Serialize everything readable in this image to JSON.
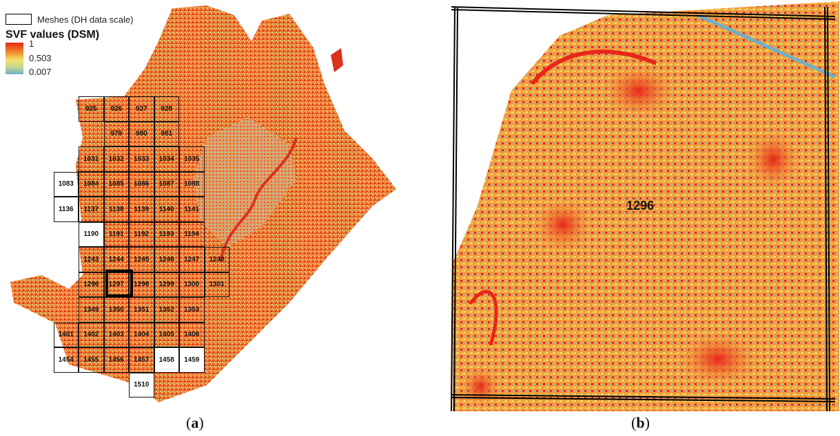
{
  "legend": {
    "mesh_label": "Meshes (DH data scale)",
    "title": "SVF values (DSM)",
    "ramp_max": "1",
    "ramp_mid": "0.503",
    "ramp_min": "0.007"
  },
  "colors": {
    "high": "#e8261a",
    "mid": "#f5e06a",
    "low": "#6fb0c8"
  },
  "panel_a": {
    "caption_open": "(",
    "caption_letter": "a",
    "caption_close": ")",
    "meshes": [
      {
        "id": "925"
      },
      {
        "id": "926"
      },
      {
        "id": "927"
      },
      {
        "id": "928"
      },
      {
        "id": "979"
      },
      {
        "id": "980"
      },
      {
        "id": "981"
      },
      {
        "id": "1031"
      },
      {
        "id": "1032"
      },
      {
        "id": "1033"
      },
      {
        "id": "1034"
      },
      {
        "id": "1035"
      },
      {
        "id": "1083"
      },
      {
        "id": "1084"
      },
      {
        "id": "1085"
      },
      {
        "id": "1086"
      },
      {
        "id": "1087"
      },
      {
        "id": "1088"
      },
      {
        "id": "1136"
      },
      {
        "id": "1137"
      },
      {
        "id": "1138"
      },
      {
        "id": "1139"
      },
      {
        "id": "1140"
      },
      {
        "id": "1141"
      },
      {
        "id": "1190"
      },
      {
        "id": "1191"
      },
      {
        "id": "1192"
      },
      {
        "id": "1193"
      },
      {
        "id": "1194"
      },
      {
        "id": "1243"
      },
      {
        "id": "1244"
      },
      {
        "id": "1245"
      },
      {
        "id": "1246"
      },
      {
        "id": "1247"
      },
      {
        "id": "1248"
      },
      {
        "id": "1296"
      },
      {
        "id": "1297"
      },
      {
        "id": "1298"
      },
      {
        "id": "1299"
      },
      {
        "id": "1300"
      },
      {
        "id": "1301"
      },
      {
        "id": "1349"
      },
      {
        "id": "1350"
      },
      {
        "id": "1351"
      },
      {
        "id": "1352"
      },
      {
        "id": "1353"
      },
      {
        "id": "1401"
      },
      {
        "id": "1402"
      },
      {
        "id": "1403"
      },
      {
        "id": "1404"
      },
      {
        "id": "1405"
      },
      {
        "id": "1406"
      },
      {
        "id": "1454"
      },
      {
        "id": "1455"
      },
      {
        "id": "1456"
      },
      {
        "id": "1457"
      },
      {
        "id": "1458"
      },
      {
        "id": "1459"
      },
      {
        "id": "1510"
      }
    ],
    "selected_mesh": "1296"
  },
  "panel_b": {
    "mesh_label": "1296",
    "caption_open": "(",
    "caption_letter": "b",
    "caption_close": ")"
  }
}
